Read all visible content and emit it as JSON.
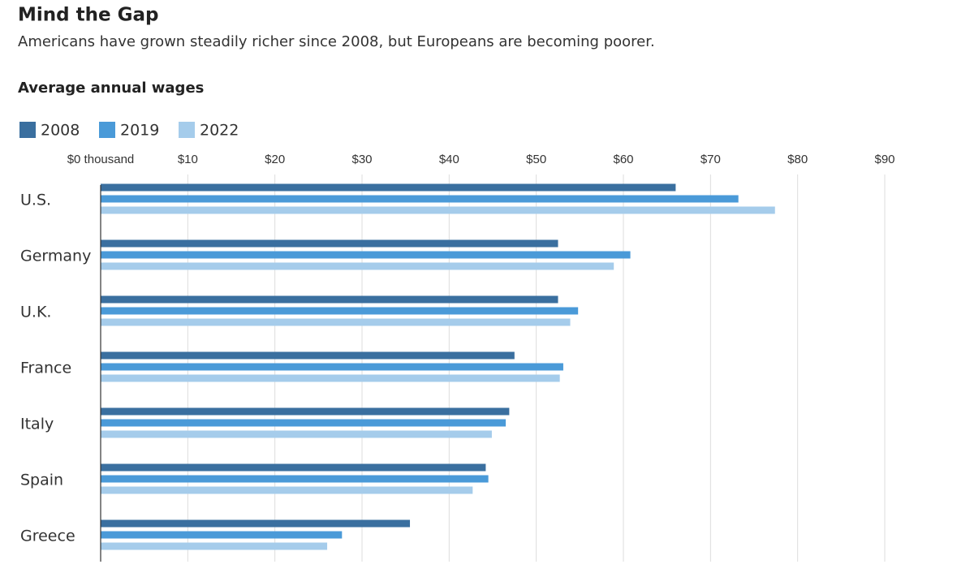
{
  "chart_data": {
    "type": "bar",
    "orientation": "horizontal",
    "title": "Mind the Gap",
    "subtitle": "Americans have grown steadily richer since 2008, but Europeans are becoming poorer.",
    "axis_title": "Average annual wages",
    "categories": [
      "U.S.",
      "Germany",
      "U.K.",
      "France",
      "Italy",
      "Spain",
      "Greece"
    ],
    "series": [
      {
        "name": "2008",
        "color": "#3a6f9f",
        "values": [
          66.0,
          52.5,
          52.5,
          47.5,
          46.9,
          44.2,
          35.5
        ]
      },
      {
        "name": "2019",
        "color": "#4a9ad8",
        "values": [
          73.2,
          60.8,
          54.8,
          53.1,
          46.5,
          44.5,
          27.7
        ]
      },
      {
        "name": "2022",
        "color": "#a5cceb",
        "values": [
          77.4,
          58.9,
          53.9,
          52.7,
          44.9,
          42.7,
          26.0
        ]
      }
    ],
    "xlim": [
      0,
      90
    ],
    "xticks": [
      {
        "value": 0,
        "label": "$0 thousand"
      },
      {
        "value": 10,
        "label": "$10"
      },
      {
        "value": 20,
        "label": "$20"
      },
      {
        "value": 30,
        "label": "$30"
      },
      {
        "value": 40,
        "label": "$40"
      },
      {
        "value": 50,
        "label": "$50"
      },
      {
        "value": 60,
        "label": "$60"
      },
      {
        "value": 70,
        "label": "$70"
      },
      {
        "value": 80,
        "label": "$80"
      },
      {
        "value": 90,
        "label": "$90"
      }
    ],
    "grid": true
  }
}
